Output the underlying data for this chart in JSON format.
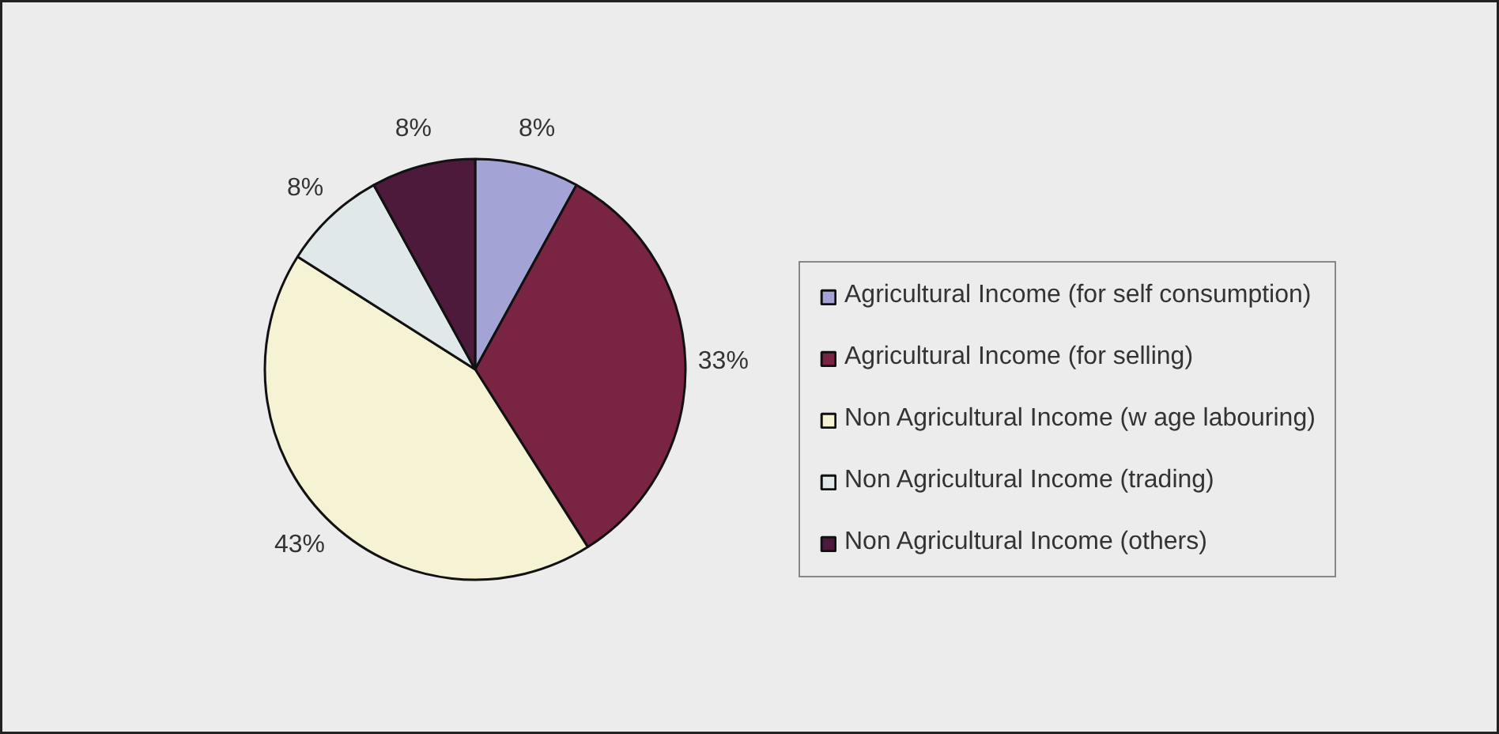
{
  "chart_data": {
    "type": "pie",
    "categories": [
      "Agricultural Income (for self consumption)",
      "Agricultural Income (for selling)",
      "Non Agricultural Income (w age labouring)",
      "Non Agricultural Income (trading)",
      "Non Agricultural Income (others)"
    ],
    "values": [
      8,
      33,
      43,
      8,
      8
    ],
    "colors": [
      "#a3a3d6",
      "#7a2444",
      "#f5f3d3",
      "#e0e8ea",
      "#4d1a3c"
    ],
    "value_labels": [
      "8%",
      "33%",
      "43%",
      "8%",
      "8%"
    ],
    "legend": "right"
  }
}
